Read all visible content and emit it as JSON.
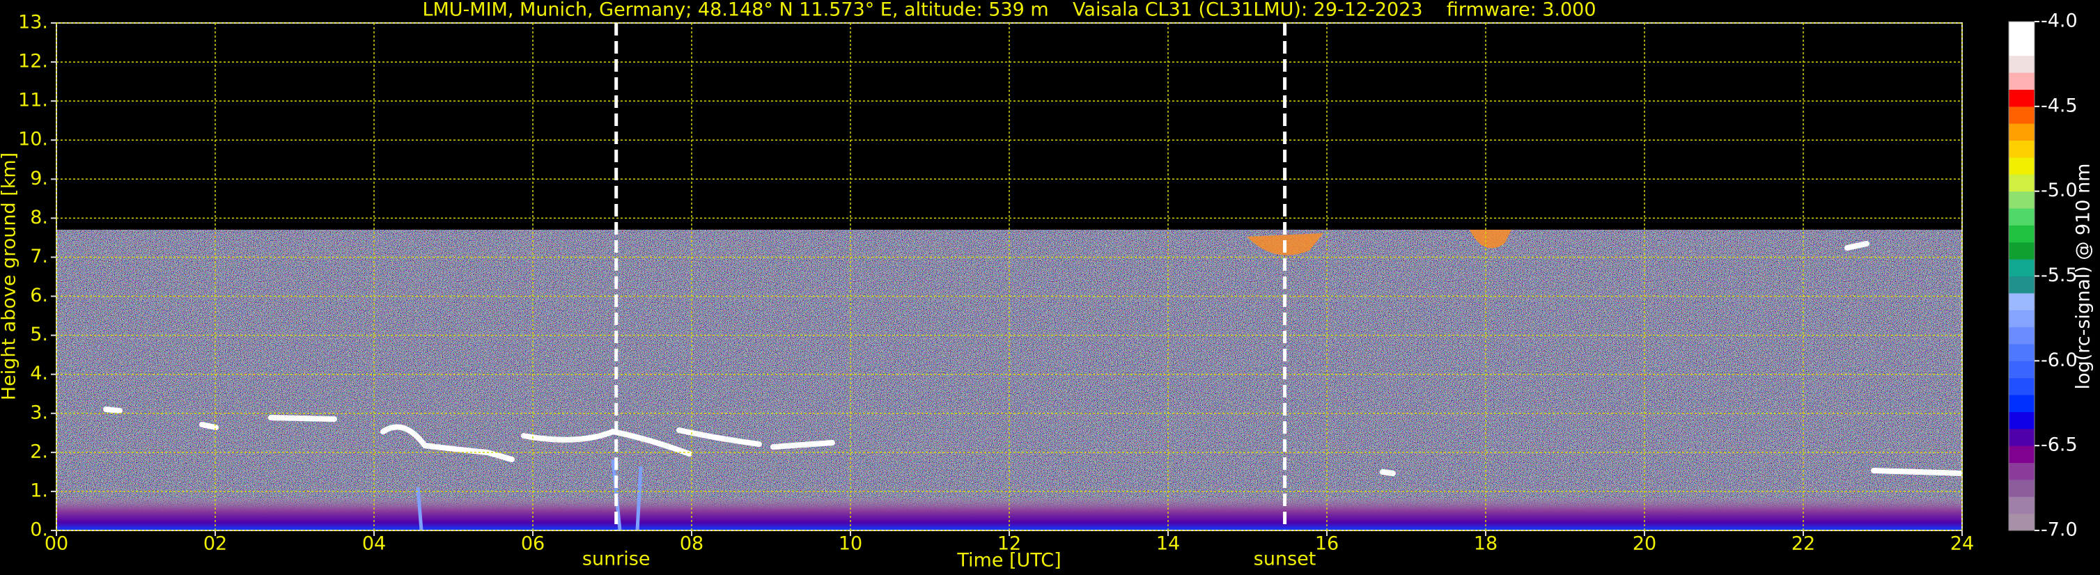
{
  "chart_data": {
    "type": "heatmap",
    "title": "LMU-MIM, Munich, Germany; 48.148° N 11.573° E, altitude: 539 m    Vaisala CL31 (CL31LMU): 29-12-2023    firmware: 3.000",
    "x_label": "Time [UTC]",
    "y_label": "Height above ground [km]",
    "xlim": [
      0,
      24
    ],
    "xticks": [
      {
        "value": 0,
        "label": "00"
      },
      {
        "value": 2,
        "label": "02"
      },
      {
        "value": 4,
        "label": "04"
      },
      {
        "value": 6,
        "label": "06"
      },
      {
        "value": 8,
        "label": "08"
      },
      {
        "value": 10,
        "label": "10"
      },
      {
        "value": 12,
        "label": "12"
      },
      {
        "value": 14,
        "label": "14"
      },
      {
        "value": 16,
        "label": "16"
      },
      {
        "value": 18,
        "label": "18"
      },
      {
        "value": 20,
        "label": "20"
      },
      {
        "value": 22,
        "label": "22"
      },
      {
        "value": 24,
        "label": "24"
      }
    ],
    "ylim": [
      0,
      13
    ],
    "yticks": [
      {
        "value": 0,
        "label": "0."
      },
      {
        "value": 1,
        "label": "1."
      },
      {
        "value": 2,
        "label": "2."
      },
      {
        "value": 3,
        "label": "3."
      },
      {
        "value": 4,
        "label": "4."
      },
      {
        "value": 5,
        "label": "5."
      },
      {
        "value": 6,
        "label": "6."
      },
      {
        "value": 7,
        "label": "7."
      },
      {
        "value": 8,
        "label": "8."
      },
      {
        "value": 9,
        "label": "9."
      },
      {
        "value": 10,
        "label": "10."
      },
      {
        "value": 11,
        "label": "11."
      },
      {
        "value": 12,
        "label": "12."
      },
      {
        "value": 13,
        "label": "13."
      }
    ],
    "grid": true,
    "grid_color": "#d8d800",
    "annotations": [
      {
        "label": "sunrise",
        "x": 7.05
      },
      {
        "label": "sunset",
        "x": 15.47
      }
    ],
    "colorbar": {
      "label": "log(rc-signal) @ 910 nm",
      "lim": [
        -7.0,
        -4.0
      ],
      "ticks": [
        {
          "value": -7,
          "label": "-7.0"
        },
        {
          "value": -6.5,
          "label": "-6.5"
        },
        {
          "value": -6,
          "label": "-6.0"
        },
        {
          "value": -5.5,
          "label": "-5.5"
        },
        {
          "value": -5,
          "label": "-5.0"
        },
        {
          "value": -4.5,
          "label": "-4.5"
        },
        {
          "value": -4,
          "label": "-4.0"
        }
      ],
      "colors": [
        "#a890a8",
        "#a080a8",
        "#8c5c9c",
        "#8a3c9a",
        "#800090",
        "#5000a8",
        "#1000e8",
        "#0030ff",
        "#2050ff",
        "#3a66ff",
        "#5078ff",
        "#6a8cff",
        "#84a4ff",
        "#9cb8ff",
        "#20908c",
        "#10a890",
        "#10a030",
        "#20c040",
        "#50d868",
        "#90e070",
        "#d0f040",
        "#f0f000",
        "#ffd000",
        "#ffa000",
        "#ff6000",
        "#ff0000",
        "#ffb0b0",
        "#f0e0e0",
        "#ffffff",
        "#ffffff"
      ]
    }
  }
}
